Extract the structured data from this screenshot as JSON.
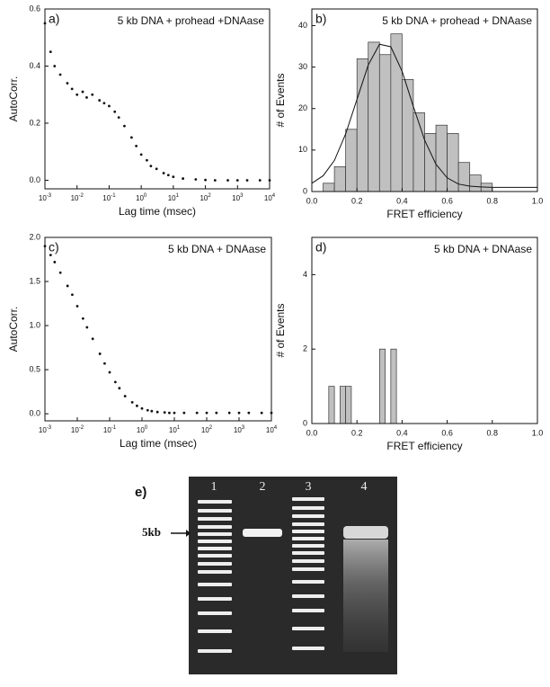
{
  "chart_data": [
    {
      "type": "scatter",
      "panel": "a)",
      "title": "5 kb DNA + prohead +DNAase",
      "x_label": "Lag time (msec)",
      "y_label": "AutoCorr.",
      "log_x": true,
      "color": "#111111",
      "x": [
        0.001,
        0.0015,
        0.002,
        0.003,
        0.005,
        0.007,
        0.01,
        0.015,
        0.02,
        0.03,
        0.05,
        0.07,
        0.1,
        0.15,
        0.2,
        0.3,
        0.5,
        0.7,
        1,
        1.5,
        2,
        3,
        5,
        7,
        10,
        20,
        50,
        100,
        200,
        500,
        1000,
        2000,
        5000,
        10000
      ],
      "values": [
        0.55,
        0.45,
        0.4,
        0.37,
        0.34,
        0.32,
        0.3,
        0.31,
        0.29,
        0.3,
        0.28,
        0.27,
        0.26,
        0.24,
        0.22,
        0.19,
        0.15,
        0.12,
        0.09,
        0.07,
        0.05,
        0.04,
        0.025,
        0.018,
        0.012,
        0.006,
        0.003,
        0.001,
        0,
        0,
        0,
        0,
        0,
        0
      ],
      "xlim": [
        0.001,
        10000
      ],
      "xticks": [
        {
          "value": 0.001,
          "label": "10",
          "exponent": "-3"
        },
        {
          "value": 0.01,
          "label": "10",
          "exponent": "-2"
        },
        {
          "value": 0.1,
          "label": "10",
          "exponent": "-1"
        },
        {
          "value": 1,
          "label": "10",
          "exponent": "0"
        },
        {
          "value": 10,
          "label": "10",
          "exponent": "1"
        },
        {
          "value": 100,
          "label": "10",
          "exponent": "2"
        },
        {
          "value": 1000,
          "label": "10",
          "exponent": "3"
        },
        {
          "value": 10000,
          "label": "10",
          "exponent": "4"
        }
      ],
      "ylim": [
        -0.03,
        0.6
      ],
      "yticks": [
        {
          "value": 0,
          "label": "0.0"
        },
        0.2,
        0.4,
        0.6
      ]
    },
    {
      "type": "histogram",
      "panel": "b)",
      "title": "5 kb DNA + prohead + DNAase",
      "x_label": "FRET efficiency",
      "y_label": "# of Events",
      "color": "#c0c0c0",
      "bins": [
        0.05,
        0.1,
        0.15,
        0.2,
        0.25,
        0.3,
        0.35,
        0.4,
        0.45,
        0.5,
        0.55,
        0.6,
        0.65,
        0.7,
        0.75,
        0.8
      ],
      "values": [
        2,
        6,
        15,
        32,
        36,
        33,
        38,
        27,
        19,
        14,
        16,
        14,
        7,
        4,
        2
      ],
      "fit": {
        "x": [
          0,
          0.05,
          0.1,
          0.15,
          0.2,
          0.25,
          0.3,
          0.35,
          0.4,
          0.45,
          0.5,
          0.55,
          0.6,
          0.65,
          0.7,
          0.75,
          0.8,
          0.85,
          0.9,
          0.95,
          1.0
        ],
        "values": [
          2.0,
          3.8,
          7.5,
          13.9,
          22.2,
          30.5,
          35.5,
          34.9,
          29.0,
          20.5,
          12.4,
          6.6,
          3.3,
          1.8,
          1.3,
          1.1,
          1.0,
          1.0,
          1.0,
          1.0,
          1.0
        ]
      },
      "xlim": [
        0,
        1
      ],
      "xticks": [
        {
          "value": 0,
          "label": "0.0"
        },
        0.2,
        0.4,
        0.6,
        0.8,
        {
          "value": 1,
          "label": "1.0"
        }
      ],
      "ylim": [
        0,
        44
      ],
      "yticks": [
        0,
        10,
        20,
        30,
        40
      ]
    },
    {
      "type": "scatter",
      "panel": "c)",
      "title": "5 kb DNA + DNAase",
      "x_label": "Lag time (msec)",
      "y_label": "AutoCorr.",
      "log_x": true,
      "color": "#111111",
      "x": [
        0.001,
        0.0015,
        0.002,
        0.003,
        0.005,
        0.007,
        0.01,
        0.015,
        0.02,
        0.03,
        0.05,
        0.07,
        0.1,
        0.15,
        0.2,
        0.3,
        0.5,
        0.7,
        1,
        1.5,
        2,
        3,
        5,
        7,
        10,
        20,
        50,
        100,
        200,
        500,
        1000,
        2000,
        5000,
        10000
      ],
      "values": [
        1.9,
        1.8,
        1.72,
        1.6,
        1.45,
        1.35,
        1.22,
        1.08,
        0.98,
        0.85,
        0.68,
        0.57,
        0.47,
        0.36,
        0.29,
        0.2,
        0.13,
        0.09,
        0.06,
        0.04,
        0.03,
        0.02,
        0.015,
        0.01,
        0.01,
        0.01,
        0.01,
        0.01,
        0.01,
        0.01,
        0.01,
        0.01,
        0.01,
        0.01
      ],
      "xlim": [
        0.001,
        10000
      ],
      "xticks": [
        {
          "value": 0.001,
          "label": "10",
          "exponent": "-3"
        },
        {
          "value": 0.01,
          "label": "10",
          "exponent": "-2"
        },
        {
          "value": 0.1,
          "label": "10",
          "exponent": "-1"
        },
        {
          "value": 1,
          "label": "10",
          "exponent": "0"
        },
        {
          "value": 10,
          "label": "10",
          "exponent": "1"
        },
        {
          "value": 100,
          "label": "10",
          "exponent": "2"
        },
        {
          "value": 1000,
          "label": "10",
          "exponent": "3"
        },
        {
          "value": 10000,
          "label": "10",
          "exponent": "4"
        }
      ],
      "ylim": [
        -0.08,
        2.0
      ],
      "yticks": [
        {
          "value": 0,
          "label": "0.0"
        },
        0.5,
        {
          "value": 1,
          "label": "1.0"
        },
        1.5,
        {
          "value": 2,
          "label": "2.0"
        }
      ]
    },
    {
      "type": "histogram",
      "panel": "d)",
      "title": "5 kb DNA + DNAase",
      "x_label": "FRET efficiency",
      "y_label": "# of Events",
      "color": "#c0c0c0",
      "bins": [
        0.075,
        0.1,
        0.125,
        0.15,
        0.175,
        0.2,
        0.225,
        0.25,
        0.275,
        0.3,
        0.325,
        0.35,
        0.375
      ],
      "values": [
        1,
        0,
        1,
        1,
        0,
        0,
        0,
        0,
        0,
        2,
        0,
        2
      ],
      "xlim": [
        0,
        1
      ],
      "xticks": [
        {
          "value": 0,
          "label": "0.0"
        },
        0.2,
        0.4,
        0.6,
        0.8,
        {
          "value": 1,
          "label": "1.0"
        }
      ],
      "ylim": [
        0,
        5
      ],
      "yticks": [
        0,
        2,
        4
      ]
    }
  ],
  "gel": {
    "panel": "e)",
    "lanes": [
      "1",
      "2",
      "3",
      "4"
    ],
    "marker": "5kb"
  }
}
